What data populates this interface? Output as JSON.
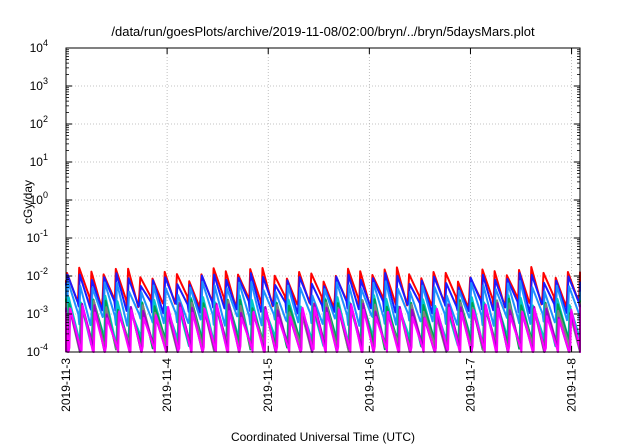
{
  "chart_data": {
    "type": "line",
    "title": "/data/run/goesPlots/archive/2019-11-08/02:00/bryn/../bryn/5daysMars.plot",
    "xlabel": "Coordinated Universal Time (UTC)",
    "ylabel": "cGy/day",
    "xlim": [
      "2019-11-03",
      "2019-11-08T02:00"
    ],
    "ylim": [
      0.0001,
      10000
    ],
    "log_y": true,
    "grid": true,
    "x_ticks": [
      "2019-11-3",
      "2019-11-4",
      "2019-11-5",
      "2019-11-6",
      "2019-11-7",
      "2019-11-8"
    ],
    "y_ticks": [
      {
        "value": 0.0001,
        "base": "10",
        "exp": "-4"
      },
      {
        "value": 0.001,
        "base": "10",
        "exp": "-3"
      },
      {
        "value": 0.01,
        "base": "10",
        "exp": "-2"
      },
      {
        "value": 0.1,
        "base": "10",
        "exp": "-1"
      },
      {
        "value": 1,
        "base": "10",
        "exp": "0"
      },
      {
        "value": 10,
        "base": "10",
        "exp": "1"
      },
      {
        "value": 100,
        "base": "10",
        "exp": "2"
      },
      {
        "value": 1000,
        "base": "10",
        "exp": "3"
      },
      {
        "value": 10000,
        "base": "10",
        "exp": "4"
      }
    ],
    "sawtooth_period_hours": 2.9,
    "series": [
      {
        "color": "#ff0000",
        "peak": 0.012,
        "trough": 0.0022,
        "phase_hours": 0.0
      },
      {
        "color": "#1a1aff",
        "peak": 0.0085,
        "trough": 0.0016,
        "phase_hours": 0.12
      },
      {
        "color": "#1e90ff",
        "peak": 0.0052,
        "trough": 0.00075,
        "phase_hours": 0.25
      },
      {
        "color": "#00c8c8",
        "peak": 0.0022,
        "trough": 0.00022,
        "phase_hours": 0.4
      },
      {
        "color": "#00a050",
        "peak": 0.0018,
        "trough": 0.00018,
        "phase_hours": 0.5
      },
      {
        "color": "#808080",
        "peak": 0.0016,
        "trough": 0.00015,
        "phase_hours": 0.6
      },
      {
        "color": "#a000c8",
        "peak": 0.0014,
        "trough": 0.00012,
        "phase_hours": 0.7
      },
      {
        "color": "#ff00ff",
        "peak": 0.0012,
        "trough": 0.0001,
        "phase_hours": 0.8
      }
    ]
  }
}
